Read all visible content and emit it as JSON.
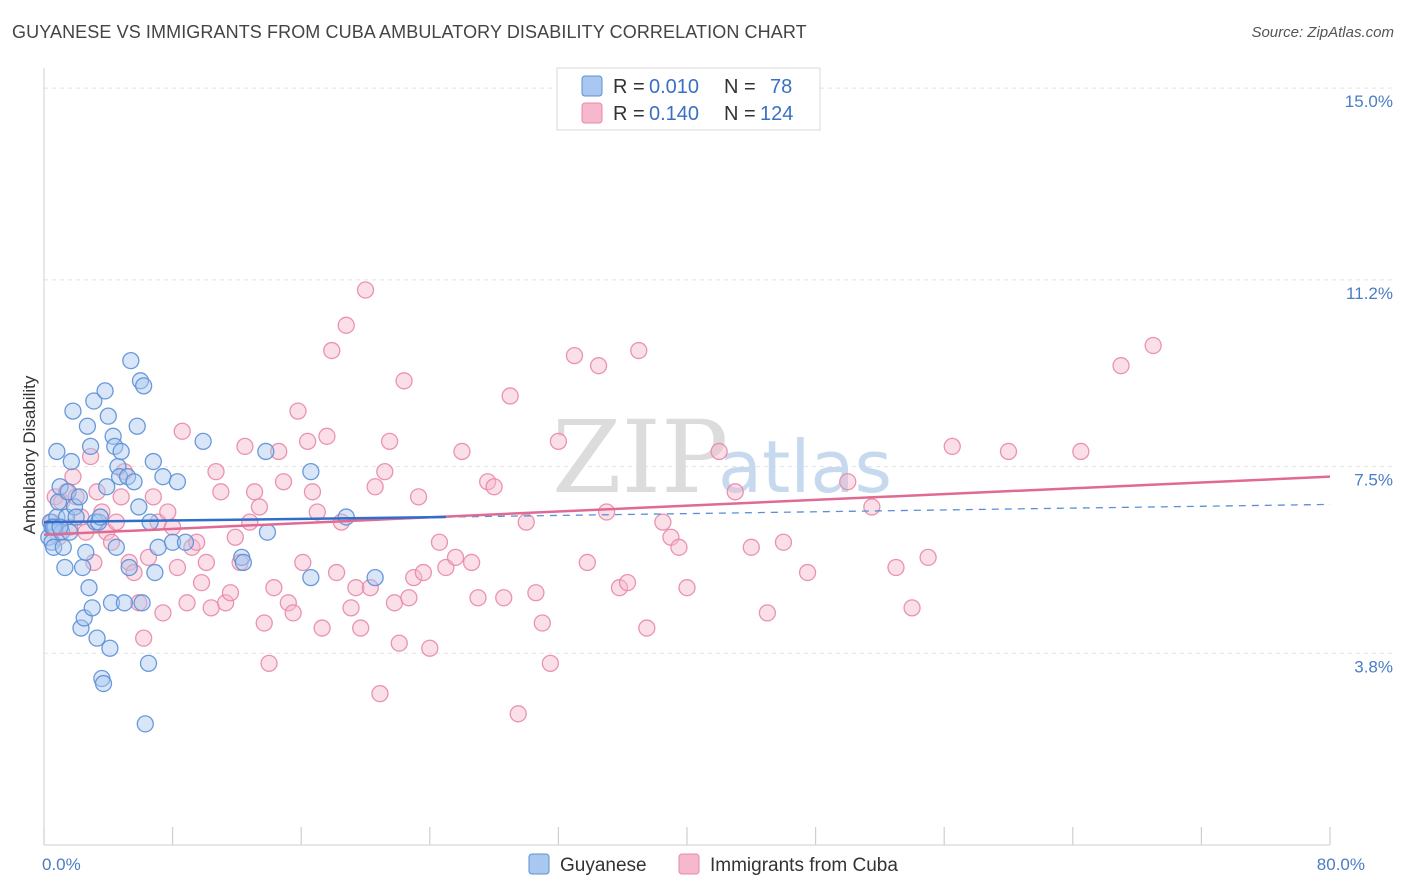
{
  "header": {
    "title": "GUYANESE VS IMMIGRANTS FROM CUBA AMBULATORY DISABILITY CORRELATION CHART",
    "source": "Source: ZipAtlas.com"
  },
  "watermark": {
    "zip": "ZIP",
    "atlas": "atlas"
  },
  "colors": {
    "blue_fill": "#a8c8ef",
    "blue_stroke": "#5b8fd6",
    "blue_line": "#2f6fc9",
    "pink_fill": "#f6b8cc",
    "pink_stroke": "#e888a8",
    "pink_line": "#e06a93",
    "axis_text": "#4a7cc7",
    "grid": "#e3e3e3"
  },
  "chart_data": {
    "type": "scatter",
    "title": "GUYANESE VS IMMIGRANTS FROM CUBA AMBULATORY DISABILITY CORRELATION CHART",
    "xlabel": "",
    "ylabel": "Ambulatory Disability",
    "xlim": [
      0,
      80
    ],
    "ylim": [
      0,
      15.4
    ],
    "x_tick_labels": [
      {
        "value": 0,
        "label": "0.0%"
      },
      {
        "value": 80,
        "label": "80.0%"
      }
    ],
    "y_tick_labels": [
      {
        "value": 3.8,
        "label": "3.8%"
      },
      {
        "value": 7.5,
        "label": "7.5%"
      },
      {
        "value": 11.2,
        "label": "11.2%"
      },
      {
        "value": 15.0,
        "label": "15.0%"
      }
    ],
    "legend": {
      "entries": [
        {
          "r_label": "R =",
          "r_value": "0.010",
          "n_label": "N =",
          "n_value": "78",
          "series": "Guyanese"
        },
        {
          "r_label": "R =",
          "r_value": "0.140",
          "n_label": "N =",
          "n_value": "124",
          "series": "Immigrants from Cuba"
        }
      ]
    },
    "series": [
      {
        "name": "Guyanese",
        "color": "blue",
        "trend": {
          "x": [
            0,
            25
          ],
          "y": [
            6.4,
            6.5
          ],
          "dashed_extension": {
            "x": [
              25,
              80
            ],
            "y": [
              6.5,
              6.75
            ]
          }
        },
        "points": [
          [
            0.3,
            6.1
          ],
          [
            0.4,
            6.4
          ],
          [
            0.5,
            6.3
          ],
          [
            0.5,
            6.0
          ],
          [
            0.6,
            5.9
          ],
          [
            0.7,
            6.3
          ],
          [
            0.8,
            6.5
          ],
          [
            0.8,
            7.8
          ],
          [
            0.9,
            6.8
          ],
          [
            1.0,
            7.1
          ],
          [
            1.1,
            6.2
          ],
          [
            1.2,
            5.9
          ],
          [
            1.3,
            5.5
          ],
          [
            1.4,
            6.5
          ],
          [
            1.5,
            7.0
          ],
          [
            1.6,
            6.2
          ],
          [
            1.7,
            7.6
          ],
          [
            1.8,
            8.6
          ],
          [
            1.9,
            6.7
          ],
          [
            2.0,
            6.5
          ],
          [
            2.2,
            6.9
          ],
          [
            2.3,
            4.3
          ],
          [
            2.4,
            5.5
          ],
          [
            2.5,
            4.5
          ],
          [
            2.6,
            5.8
          ],
          [
            2.7,
            8.3
          ],
          [
            2.8,
            5.1
          ],
          [
            2.9,
            7.9
          ],
          [
            3.0,
            4.7
          ],
          [
            3.1,
            8.8
          ],
          [
            3.2,
            6.4
          ],
          [
            3.3,
            4.1
          ],
          [
            3.4,
            6.4
          ],
          [
            3.5,
            6.5
          ],
          [
            3.6,
            3.3
          ],
          [
            3.7,
            3.2
          ],
          [
            3.8,
            9.0
          ],
          [
            3.9,
            7.1
          ],
          [
            4.0,
            8.5
          ],
          [
            4.1,
            3.9
          ],
          [
            4.2,
            4.8
          ],
          [
            4.3,
            8.1
          ],
          [
            4.4,
            7.9
          ],
          [
            4.5,
            5.9
          ],
          [
            4.6,
            7.5
          ],
          [
            4.7,
            7.3
          ],
          [
            4.8,
            7.8
          ],
          [
            5.0,
            4.8
          ],
          [
            5.2,
            7.3
          ],
          [
            5.3,
            5.5
          ],
          [
            5.4,
            9.6
          ],
          [
            5.6,
            7.2
          ],
          [
            5.8,
            8.3
          ],
          [
            5.9,
            6.7
          ],
          [
            6.0,
            9.2
          ],
          [
            6.1,
            4.8
          ],
          [
            6.2,
            9.1
          ],
          [
            6.3,
            2.4
          ],
          [
            6.5,
            3.6
          ],
          [
            6.6,
            6.4
          ],
          [
            6.8,
            7.6
          ],
          [
            6.9,
            5.4
          ],
          [
            7.1,
            5.9
          ],
          [
            7.4,
            7.3
          ],
          [
            8.0,
            6.0
          ],
          [
            8.3,
            7.2
          ],
          [
            8.8,
            6.0
          ],
          [
            9.9,
            8.0
          ],
          [
            12.3,
            5.7
          ],
          [
            12.4,
            5.6
          ],
          [
            13.8,
            7.8
          ],
          [
            13.9,
            6.2
          ],
          [
            16.6,
            7.4
          ],
          [
            16.6,
            5.3
          ],
          [
            18.8,
            6.5
          ],
          [
            20.6,
            5.3
          ],
          [
            0.6,
            6.3
          ],
          [
            1.0,
            6.3
          ]
        ]
      },
      {
        "name": "Immigrants from Cuba",
        "color": "pink",
        "trend": {
          "x": [
            0,
            80
          ],
          "y": [
            6.15,
            7.3
          ]
        },
        "points": [
          [
            0.5,
            6.4
          ],
          [
            0.7,
            6.9
          ],
          [
            0.9,
            6.1
          ],
          [
            1.1,
            6.8
          ],
          [
            1.4,
            7.0
          ],
          [
            1.6,
            6.3
          ],
          [
            1.8,
            7.3
          ],
          [
            2.0,
            6.9
          ],
          [
            2.3,
            6.5
          ],
          [
            2.6,
            6.2
          ],
          [
            2.9,
            7.7
          ],
          [
            3.1,
            5.6
          ],
          [
            3.3,
            7.0
          ],
          [
            3.6,
            6.6
          ],
          [
            3.9,
            6.2
          ],
          [
            4.2,
            6.0
          ],
          [
            4.5,
            6.4
          ],
          [
            4.8,
            6.9
          ],
          [
            5.0,
            7.4
          ],
          [
            5.3,
            5.6
          ],
          [
            5.6,
            5.4
          ],
          [
            5.9,
            4.8
          ],
          [
            6.2,
            4.1
          ],
          [
            6.5,
            5.7
          ],
          [
            6.8,
            6.9
          ],
          [
            7.1,
            6.4
          ],
          [
            7.4,
            4.6
          ],
          [
            7.7,
            6.6
          ],
          [
            8.0,
            6.3
          ],
          [
            8.3,
            5.5
          ],
          [
            8.6,
            8.2
          ],
          [
            8.9,
            4.8
          ],
          [
            9.2,
            5.9
          ],
          [
            9.5,
            6.0
          ],
          [
            9.8,
            5.2
          ],
          [
            10.1,
            5.6
          ],
          [
            10.4,
            4.7
          ],
          [
            10.7,
            7.4
          ],
          [
            11.0,
            7.0
          ],
          [
            11.3,
            4.8
          ],
          [
            11.6,
            5.0
          ],
          [
            11.9,
            6.1
          ],
          [
            12.2,
            5.6
          ],
          [
            12.5,
            7.9
          ],
          [
            12.8,
            6.4
          ],
          [
            13.1,
            7.0
          ],
          [
            13.4,
            6.7
          ],
          [
            13.7,
            4.4
          ],
          [
            14.0,
            3.6
          ],
          [
            14.3,
            5.1
          ],
          [
            14.6,
            7.8
          ],
          [
            14.9,
            7.2
          ],
          [
            15.2,
            4.8
          ],
          [
            15.5,
            4.6
          ],
          [
            15.8,
            8.6
          ],
          [
            16.1,
            5.6
          ],
          [
            16.4,
            8.0
          ],
          [
            16.7,
            7.0
          ],
          [
            17.0,
            6.6
          ],
          [
            17.3,
            4.3
          ],
          [
            17.6,
            8.1
          ],
          [
            17.9,
            9.8
          ],
          [
            18.2,
            5.4
          ],
          [
            18.5,
            6.4
          ],
          [
            18.8,
            10.3
          ],
          [
            19.1,
            4.7
          ],
          [
            19.4,
            5.1
          ],
          [
            19.7,
            4.3
          ],
          [
            20.0,
            11.0
          ],
          [
            20.3,
            5.1
          ],
          [
            20.6,
            7.1
          ],
          [
            20.9,
            3.0
          ],
          [
            21.2,
            7.4
          ],
          [
            21.5,
            8.0
          ],
          [
            21.8,
            4.8
          ],
          [
            22.1,
            4.0
          ],
          [
            22.4,
            9.2
          ],
          [
            22.7,
            4.9
          ],
          [
            23.0,
            5.3
          ],
          [
            23.3,
            6.9
          ],
          [
            23.6,
            5.4
          ],
          [
            24.0,
            3.9
          ],
          [
            24.6,
            6.0
          ],
          [
            25.0,
            5.5
          ],
          [
            25.6,
            5.7
          ],
          [
            26.0,
            7.8
          ],
          [
            26.6,
            5.6
          ],
          [
            27.0,
            4.9
          ],
          [
            27.6,
            7.2
          ],
          [
            28.0,
            7.1
          ],
          [
            28.6,
            4.9
          ],
          [
            29.0,
            8.9
          ],
          [
            29.5,
            2.6
          ],
          [
            30.0,
            6.4
          ],
          [
            30.6,
            5.0
          ],
          [
            31.0,
            4.4
          ],
          [
            31.5,
            3.6
          ],
          [
            32.0,
            8.0
          ],
          [
            33.0,
            9.7
          ],
          [
            33.8,
            5.6
          ],
          [
            34.5,
            9.5
          ],
          [
            35.0,
            6.6
          ],
          [
            35.8,
            5.1
          ],
          [
            36.3,
            5.2
          ],
          [
            37.0,
            9.8
          ],
          [
            37.5,
            4.3
          ],
          [
            38.5,
            6.4
          ],
          [
            39.0,
            6.1
          ],
          [
            39.5,
            5.9
          ],
          [
            40.0,
            5.1
          ],
          [
            42.0,
            7.8
          ],
          [
            43.0,
            7.0
          ],
          [
            44.0,
            5.9
          ],
          [
            45.0,
            4.6
          ],
          [
            46.0,
            6.0
          ],
          [
            47.5,
            5.4
          ],
          [
            50.0,
            7.2
          ],
          [
            51.5,
            6.7
          ],
          [
            53.0,
            5.5
          ],
          [
            54.0,
            4.7
          ],
          [
            55.0,
            5.7
          ],
          [
            56.5,
            7.9
          ],
          [
            60.0,
            7.8
          ],
          [
            64.5,
            7.8
          ],
          [
            67.0,
            9.5
          ],
          [
            69.0,
            9.9
          ]
        ]
      }
    ],
    "bottom_legend": [
      "Guyanese",
      "Immigrants from Cuba"
    ]
  }
}
